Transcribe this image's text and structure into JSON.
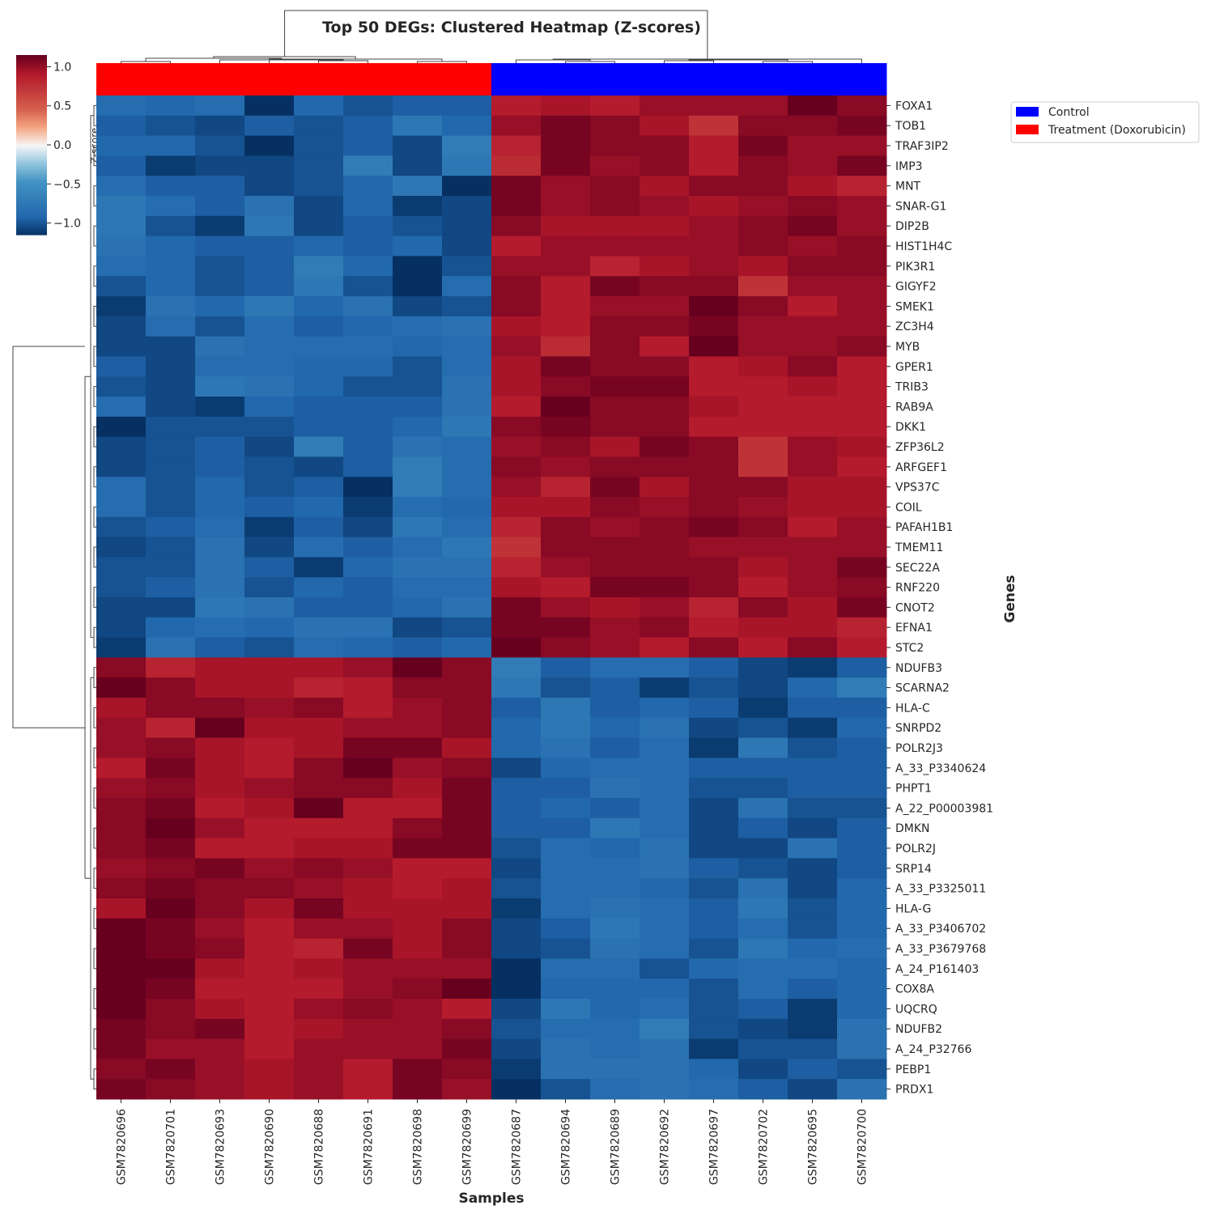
{
  "chart_data": {
    "type": "heatmap",
    "title": "Top 50 DEGs: Clustered Heatmap (Z-scores)",
    "xlabel": "Samples",
    "ylabel": "Genes",
    "colorbar": {
      "label": "Z-score",
      "range": [
        -1.15,
        1.15
      ],
      "ticks": [
        1.0,
        0.5,
        0.0,
        -0.5,
        -1.0
      ],
      "tick_labels": [
        "1.0",
        "0.5",
        "0.0",
        "−0.5",
        "−1.0"
      ],
      "colormap": "RdBu_r"
    },
    "legend": {
      "position": "top-right",
      "items": [
        {
          "label": "Control",
          "color": "#0000ff"
        },
        {
          "label": "Treatment (Doxorubicin)",
          "color": "#ff0000"
        }
      ]
    },
    "columns": [
      "GSM7820696",
      "GSM7820701",
      "GSM7820693",
      "GSM7820690",
      "GSM7820688",
      "GSM7820691",
      "GSM7820698",
      "GSM7820699",
      "GSM7820687",
      "GSM7820694",
      "GSM7820689",
      "GSM7820692",
      "GSM7820697",
      "GSM7820702",
      "GSM7820695",
      "GSM7820700"
    ],
    "column_groups": [
      "Treatment (Doxorubicin)",
      "Treatment (Doxorubicin)",
      "Treatment (Doxorubicin)",
      "Treatment (Doxorubicin)",
      "Treatment (Doxorubicin)",
      "Treatment (Doxorubicin)",
      "Treatment (Doxorubicin)",
      "Treatment (Doxorubicin)",
      "Control",
      "Control",
      "Control",
      "Control",
      "Control",
      "Control",
      "Control",
      "Control"
    ],
    "rows": [
      "FOXA1",
      "TOB1",
      "TRAF3IP2",
      "IMP3",
      "MNT",
      "SNAR-G1",
      "DIP2B",
      "HIST1H4C",
      "PIK3R1",
      "GIGYF2",
      "SMEK1",
      "ZC3H4",
      "MYB",
      "GPER1",
      "TRIB3",
      "RAB9A",
      "DKK1",
      "ZFP36L2",
      "ARFGEF1",
      "VPS37C",
      "COIL",
      "PAFAH1B1",
      "TMEM11",
      "SEC22A",
      "RNF220",
      "CNOT2",
      "EFNA1",
      "STC2",
      "NDUFB3",
      "SCARNA2",
      "HLA-C",
      "SNRPD2",
      "POLR2J3",
      "A_33_P3340624",
      "PHPT1",
      "A_22_P00003981",
      "DMKN",
      "POLR2J",
      "SRP14",
      "A_33_P3325011",
      "HLA-G",
      "A_33_P3406702",
      "A_33_P3679768",
      "A_24_P161403",
      "COX8A",
      "UQCRQ",
      "NDUFB2",
      "A_24_P32766",
      "PEBP1",
      "PRDX1"
    ],
    "values": [
      [
        -0.85,
        -0.9,
        -0.85,
        -1.15,
        -0.9,
        -1.0,
        -0.95,
        -0.95,
        0.9,
        0.95,
        0.9,
        1.0,
        1.0,
        1.0,
        1.15,
        1.05
      ],
      [
        -0.95,
        -1.0,
        -1.05,
        -0.95,
        -1.0,
        -0.95,
        -0.75,
        -0.9,
        1.0,
        1.1,
        1.05,
        0.95,
        0.75,
        1.05,
        1.05,
        1.1
      ],
      [
        -0.9,
        -0.9,
        -1.0,
        -1.15,
        -1.0,
        -0.95,
        -1.05,
        -0.7,
        0.85,
        1.1,
        1.05,
        1.05,
        0.9,
        1.1,
        1.0,
        1.0
      ],
      [
        -0.95,
        -1.1,
        -1.05,
        -1.05,
        -1.0,
        -0.7,
        -1.05,
        -0.75,
        0.8,
        1.1,
        1.0,
        1.05,
        0.9,
        1.05,
        1.0,
        1.1
      ],
      [
        -0.85,
        -0.95,
        -0.95,
        -1.05,
        -1.0,
        -0.9,
        -0.75,
        -1.15,
        1.1,
        1.0,
        1.05,
        0.95,
        1.05,
        1.05,
        0.95,
        0.85
      ],
      [
        -0.75,
        -0.85,
        -0.95,
        -0.8,
        -1.05,
        -0.9,
        -1.1,
        -1.05,
        1.1,
        1.0,
        1.05,
        1.0,
        0.95,
        1.0,
        1.05,
        1.0
      ],
      [
        -0.75,
        -1.0,
        -1.1,
        -0.75,
        -1.05,
        -0.95,
        -1.0,
        -1.05,
        1.05,
        0.95,
        0.95,
        0.95,
        1.0,
        1.05,
        1.1,
        1.0
      ],
      [
        -0.8,
        -0.9,
        -0.95,
        -0.95,
        -0.9,
        -0.95,
        -0.9,
        -1.05,
        0.9,
        1.0,
        1.0,
        1.0,
        1.0,
        1.05,
        1.0,
        1.05
      ],
      [
        -0.85,
        -0.9,
        -1.0,
        -0.95,
        -0.7,
        -0.9,
        -1.15,
        -1.0,
        1.0,
        1.0,
        0.85,
        0.95,
        1.0,
        0.95,
        1.05,
        1.05
      ],
      [
        -1.0,
        -0.9,
        -1.0,
        -0.95,
        -0.75,
        -1.0,
        -1.15,
        -0.85,
        1.05,
        0.9,
        1.1,
        1.05,
        1.05,
        0.75,
        1.0,
        1.0
      ],
      [
        -1.1,
        -0.8,
        -0.9,
        -0.75,
        -0.9,
        -0.8,
        -1.05,
        -1.0,
        1.05,
        0.9,
        1.0,
        1.0,
        1.15,
        1.05,
        0.9,
        1.0
      ],
      [
        -1.05,
        -0.85,
        -1.0,
        -0.85,
        -0.95,
        -0.9,
        -0.85,
        -0.8,
        0.95,
        0.9,
        1.05,
        1.05,
        1.1,
        1.0,
        1.0,
        1.0
      ],
      [
        -1.05,
        -1.05,
        -0.8,
        -0.85,
        -0.85,
        -0.85,
        -0.9,
        -0.85,
        1.0,
        0.8,
        1.05,
        0.9,
        1.15,
        1.0,
        1.0,
        1.05
      ],
      [
        -0.95,
        -1.05,
        -0.85,
        -0.85,
        -0.9,
        -0.9,
        -1.0,
        -0.85,
        0.95,
        1.1,
        1.05,
        1.05,
        0.9,
        0.95,
        1.05,
        0.9
      ],
      [
        -1.0,
        -1.05,
        -0.75,
        -0.8,
        -0.9,
        -1.0,
        -1.0,
        -0.8,
        0.95,
        1.05,
        1.1,
        1.1,
        0.9,
        0.9,
        0.95,
        0.9
      ],
      [
        -0.85,
        -1.05,
        -1.1,
        -0.9,
        -0.95,
        -0.95,
        -0.95,
        -0.8,
        0.9,
        1.15,
        1.05,
        1.05,
        0.95,
        0.9,
        0.9,
        0.9
      ],
      [
        -1.15,
        -1.0,
        -1.0,
        -1.0,
        -0.95,
        -0.95,
        -0.9,
        -0.75,
        1.05,
        1.1,
        1.05,
        1.05,
        0.9,
        0.9,
        0.9,
        0.9
      ],
      [
        -1.05,
        -1.0,
        -0.95,
        -1.05,
        -0.7,
        -0.95,
        -0.8,
        -0.85,
        1.0,
        1.05,
        0.95,
        1.1,
        1.05,
        0.75,
        1.0,
        0.95
      ],
      [
        -1.05,
        -1.0,
        -0.95,
        -1.0,
        -1.05,
        -0.95,
        -0.7,
        -0.85,
        1.05,
        1.0,
        1.05,
        1.05,
        1.05,
        0.75,
        1.0,
        0.9
      ],
      [
        -0.85,
        -1.0,
        -0.9,
        -1.0,
        -0.95,
        -1.15,
        -0.7,
        -0.85,
        1.0,
        0.85,
        1.1,
        0.95,
        1.05,
        1.05,
        0.95,
        0.95
      ],
      [
        -0.85,
        -1.0,
        -0.9,
        -0.95,
        -0.9,
        -1.1,
        -0.85,
        -0.9,
        0.95,
        0.95,
        1.05,
        1.0,
        1.05,
        1.0,
        0.95,
        0.95
      ],
      [
        -1.0,
        -0.95,
        -0.85,
        -1.1,
        -0.95,
        -1.05,
        -0.75,
        -0.85,
        0.85,
        1.05,
        1.0,
        1.05,
        1.1,
        1.05,
        0.9,
        1.0
      ],
      [
        -1.05,
        -1.0,
        -0.8,
        -1.05,
        -0.85,
        -0.95,
        -0.85,
        -0.75,
        0.75,
        1.05,
        1.05,
        1.05,
        1.0,
        1.0,
        1.0,
        1.0
      ],
      [
        -1.0,
        -1.0,
        -0.8,
        -0.95,
        -1.1,
        -0.9,
        -0.8,
        -0.8,
        0.85,
        1.0,
        1.05,
        1.05,
        1.05,
        0.95,
        1.0,
        1.1
      ],
      [
        -1.0,
        -0.95,
        -0.8,
        -1.0,
        -0.9,
        -0.95,
        -0.85,
        -0.85,
        0.95,
        0.9,
        1.1,
        1.1,
        1.05,
        0.9,
        1.0,
        1.05
      ],
      [
        -1.05,
        -1.05,
        -0.75,
        -0.8,
        -0.95,
        -0.95,
        -0.9,
        -0.8,
        1.1,
        1.0,
        0.95,
        1.0,
        0.85,
        1.05,
        0.95,
        1.1
      ],
      [
        -1.05,
        -0.9,
        -0.85,
        -0.9,
        -0.8,
        -0.8,
        -1.05,
        -1.0,
        1.1,
        1.1,
        1.0,
        1.05,
        0.9,
        0.95,
        0.95,
        0.85
      ],
      [
        -1.1,
        -0.8,
        -0.95,
        -1.0,
        -0.85,
        -0.9,
        -0.95,
        -0.9,
        1.15,
        1.05,
        1.0,
        0.9,
        1.05,
        0.9,
        1.05,
        0.9
      ],
      [
        1.05,
        0.85,
        0.95,
        0.95,
        0.95,
        1.0,
        1.15,
        1.05,
        -0.7,
        -0.95,
        -0.85,
        -0.85,
        -0.95,
        -1.05,
        -1.1,
        -0.95
      ],
      [
        1.15,
        1.05,
        0.95,
        0.95,
        0.85,
        0.9,
        1.05,
        1.05,
        -0.75,
        -1.0,
        -0.95,
        -1.1,
        -1.0,
        -1.05,
        -0.9,
        -0.7
      ],
      [
        0.95,
        1.05,
        1.05,
        1.0,
        1.05,
        0.9,
        1.0,
        1.05,
        -0.95,
        -0.75,
        -0.95,
        -0.9,
        -0.95,
        -1.1,
        -0.95,
        -0.95
      ],
      [
        1.0,
        0.85,
        1.2,
        0.95,
        0.95,
        1.0,
        1.0,
        1.05,
        -0.9,
        -0.75,
        -0.9,
        -0.8,
        -1.05,
        -1.0,
        -1.1,
        -0.9
      ],
      [
        1.0,
        1.05,
        0.95,
        0.9,
        0.95,
        1.1,
        1.1,
        0.95,
        -0.9,
        -0.8,
        -0.95,
        -0.85,
        -1.1,
        -0.75,
        -1.0,
        -0.95
      ],
      [
        0.9,
        1.1,
        0.95,
        0.9,
        1.05,
        1.15,
        1.0,
        1.05,
        -1.05,
        -0.9,
        -0.85,
        -0.85,
        -0.95,
        -0.95,
        -0.95,
        -0.95
      ],
      [
        1.0,
        1.05,
        0.95,
        1.0,
        1.05,
        1.05,
        0.95,
        1.1,
        -0.95,
        -0.95,
        -0.8,
        -0.85,
        -1.0,
        -1.0,
        -0.95,
        -0.95
      ],
      [
        1.05,
        1.1,
        0.9,
        0.95,
        1.15,
        0.9,
        0.9,
        1.1,
        -0.95,
        -0.9,
        -0.95,
        -0.85,
        -1.05,
        -0.8,
        -1.0,
        -1.0
      ],
      [
        1.05,
        1.15,
        1.0,
        0.9,
        0.9,
        0.9,
        1.05,
        1.1,
        -0.95,
        -0.95,
        -0.75,
        -0.85,
        -1.05,
        -0.95,
        -1.05,
        -0.95
      ],
      [
        1.05,
        1.1,
        0.9,
        0.9,
        0.95,
        0.95,
        1.1,
        1.1,
        -1.0,
        -0.85,
        -0.9,
        -0.8,
        -1.05,
        -1.05,
        -0.8,
        -0.95
      ],
      [
        1.0,
        1.05,
        1.1,
        1.0,
        1.05,
        1.0,
        0.9,
        0.9,
        -1.05,
        -0.85,
        -0.85,
        -0.8,
        -0.95,
        -1.0,
        -1.05,
        -0.95
      ],
      [
        1.05,
        1.1,
        1.05,
        1.05,
        1.0,
        0.95,
        0.9,
        0.95,
        -1.0,
        -0.85,
        -0.85,
        -0.9,
        -1.0,
        -0.8,
        -1.05,
        -0.9
      ],
      [
        0.95,
        1.15,
        1.05,
        0.95,
        1.1,
        0.95,
        0.95,
        0.95,
        -1.1,
        -0.85,
        -0.8,
        -0.85,
        -0.95,
        -0.75,
        -1.0,
        -0.9
      ],
      [
        1.15,
        1.1,
        1.0,
        0.9,
        1.0,
        1.0,
        0.95,
        1.05,
        -1.05,
        -0.95,
        -0.75,
        -0.85,
        -0.95,
        -0.85,
        -1.0,
        -0.9
      ],
      [
        1.15,
        1.1,
        1.05,
        0.9,
        0.85,
        1.1,
        0.95,
        1.05,
        -1.05,
        -1.0,
        -0.8,
        -0.85,
        -1.0,
        -0.75,
        -0.9,
        -0.85
      ],
      [
        1.15,
        1.15,
        0.95,
        0.9,
        0.95,
        1.0,
        1.0,
        1.0,
        -1.15,
        -0.85,
        -0.85,
        -1.0,
        -0.9,
        -0.85,
        -0.85,
        -0.9
      ],
      [
        1.15,
        1.1,
        0.9,
        0.9,
        0.9,
        1.0,
        1.05,
        1.15,
        -1.15,
        -0.9,
        -0.9,
        -0.9,
        -1.0,
        -0.85,
        -0.95,
        -0.9
      ],
      [
        1.15,
        1.05,
        0.95,
        0.9,
        1.0,
        1.05,
        1.0,
        0.9,
        -1.05,
        -0.75,
        -0.9,
        -0.85,
        -1.0,
        -0.95,
        -1.1,
        -0.9
      ],
      [
        1.1,
        1.05,
        1.1,
        0.9,
        0.95,
        1.0,
        1.0,
        1.05,
        -1.0,
        -0.85,
        -0.85,
        -0.7,
        -1.0,
        -1.05,
        -1.1,
        -0.8
      ],
      [
        1.1,
        1.0,
        1.0,
        0.9,
        1.0,
        1.0,
        1.0,
        1.1,
        -1.05,
        -0.8,
        -0.85,
        -0.8,
        -1.1,
        -1.0,
        -1.0,
        -0.8
      ],
      [
        1.05,
        1.1,
        1.0,
        0.95,
        1.0,
        0.9,
        1.1,
        1.05,
        -1.1,
        -0.8,
        -0.8,
        -0.8,
        -0.9,
        -1.05,
        -0.95,
        -1.0
      ],
      [
        1.1,
        1.05,
        1.0,
        0.95,
        1.0,
        0.9,
        1.1,
        1.0,
        -1.15,
        -1.0,
        -0.85,
        -0.8,
        -0.85,
        -0.95,
        -1.05,
        -0.8
      ]
    ]
  }
}
